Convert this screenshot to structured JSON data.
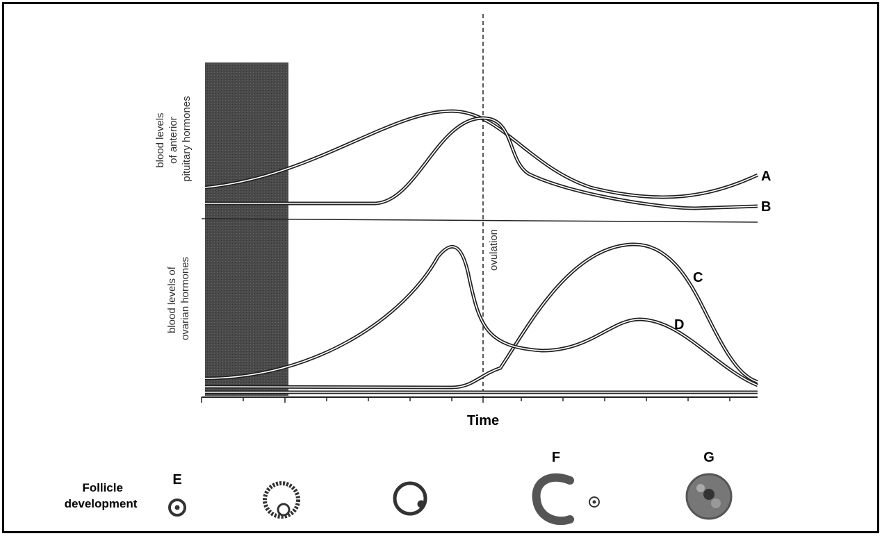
{
  "panels": {
    "top": {
      "y_label_lines": [
        "blood levels",
        "of anterior",
        "pituitary hormones"
      ],
      "curves": [
        "A",
        "B"
      ]
    },
    "bottom": {
      "y_label_lines": [
        "blood levels of",
        "ovarian hormones"
      ],
      "curves": [
        "C",
        "D"
      ]
    }
  },
  "marker": "ovulation",
  "x_axis_label": "Time",
  "follicle": {
    "label_lines": [
      "Follicle",
      "development"
    ],
    "stages": [
      "E",
      "F",
      "G"
    ]
  }
}
